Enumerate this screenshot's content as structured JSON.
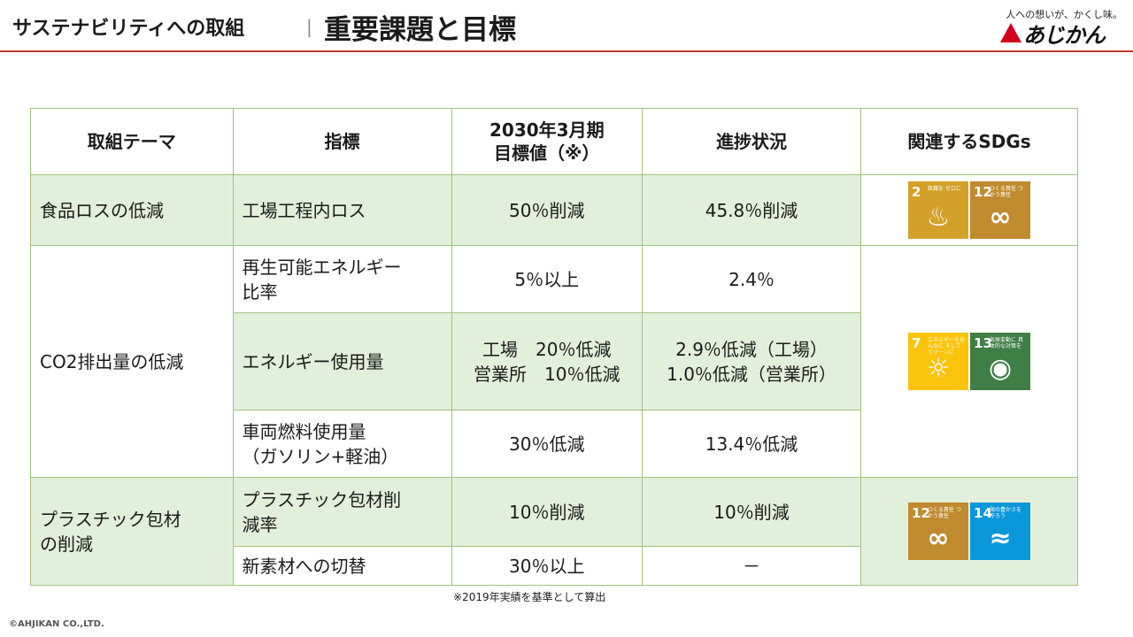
{
  "header": {
    "subtitle": "サステナビリティへの取組",
    "separator": "|",
    "title": "重要課題と目標",
    "logo_tagline": "人への想いが、かくし味。",
    "logo_text": "あじかん"
  },
  "table": {
    "headers": {
      "theme": "取組テーマ",
      "indicator": "指標",
      "target_line1": "2030年3月期",
      "target_line2": "目標値（※）",
      "progress": "進捗状況",
      "sdgs": "関連するSDGs"
    },
    "rows": [
      {
        "theme": "食品ロスの低減",
        "indicator": "工場工程内ロス",
        "target": "50％削減",
        "progress": "45.8％削減"
      },
      {
        "theme": "CO2排出量の低減",
        "indicator_line1": "再生可能エネルギー",
        "indicator_line2": "比率",
        "target": "5％以上",
        "progress": "2.4％"
      },
      {
        "indicator": "エネルギー使用量",
        "target_line1": "工場　20％低減",
        "target_line2": "営業所　10％低減",
        "progress_line1": "2.9％低減（工場）",
        "progress_line2": "1.0％低減（営業所）"
      },
      {
        "indicator_line1": "車両燃料使用量",
        "indicator_line2": "（ガソリン+軽油）",
        "target": "30％低減",
        "progress": "13.4％低減"
      },
      {
        "theme_line1": "プラスチック包材",
        "theme_line2": "の削減",
        "indicator_line1": "プラスチック包材削",
        "indicator_line2": "減率",
        "target": "10％削減",
        "progress": "10％削減"
      },
      {
        "indicator": "新素材への切替",
        "target": "30％以上",
        "progress": "－"
      }
    ],
    "sdgs": {
      "group1": [
        {
          "num": "2",
          "caption": "飢餓を ゼロに",
          "icon": "bowl-icon",
          "color": "#d3a029"
        },
        {
          "num": "12",
          "caption": "つくる責任 つかう責任",
          "icon": "infinity-icon",
          "color": "#bf8b2e"
        }
      ],
      "group2": [
        {
          "num": "7",
          "caption": "エネルギーをみんなに そしてクリーンに",
          "icon": "sun-icon",
          "color": "#fcc30b"
        },
        {
          "num": "13",
          "caption": "気候変動に 具体的な対策を",
          "icon": "earth-eye-icon",
          "color": "#3f7e44"
        }
      ],
      "group3": [
        {
          "num": "12",
          "caption": "つくる責任 つかう責任",
          "icon": "infinity-icon",
          "color": "#bf8b2e"
        },
        {
          "num": "14",
          "caption": "海の豊かさを 守ろう",
          "icon": "fish-icon",
          "color": "#0a97d9"
        }
      ]
    }
  },
  "note": "※2019年実績を基準として算出",
  "copyright": "©AHJIKAN CO.,LTD."
}
